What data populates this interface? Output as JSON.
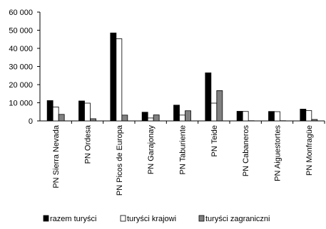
{
  "chart_data": {
    "type": "bar",
    "categories": [
      "PN Sierra Nevada",
      "PN Ordesa",
      "PN Picos de Europa",
      "PN Garajonay",
      "PN Taburiente",
      "PN Teide",
      "PN Cabaneros",
      "PN Aiguestortes",
      "PN Monfragüe"
    ],
    "series": [
      {
        "name": "razem turyści",
        "color": "#000000",
        "values": [
          11200,
          11000,
          48500,
          4800,
          8700,
          26500,
          5300,
          5200,
          6500
        ]
      },
      {
        "name": "turyści krajowi",
        "color": "#ffffff",
        "values": [
          7700,
          9800,
          45300,
          1600,
          3200,
          9800,
          5200,
          5100,
          5700
        ]
      },
      {
        "name": "turyści zagraniczni",
        "color": "#808080",
        "values": [
          3600,
          1200,
          3200,
          3300,
          5600,
          16700,
          100,
          100,
          800
        ]
      }
    ],
    "ylim": [
      0,
      60000
    ],
    "yticks": [
      0,
      10000,
      20000,
      30000,
      40000,
      50000,
      60000
    ],
    "ytick_labels": [
      "0",
      "10 000",
      "20 000",
      "30 000",
      "40 000",
      "50 000",
      "60 000"
    ],
    "grid": false,
    "legend_position": "bottom"
  }
}
